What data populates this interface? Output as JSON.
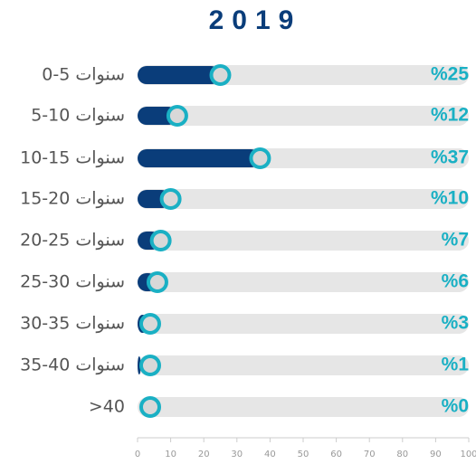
{
  "chart_data": {
    "type": "bar",
    "title": "2019",
    "categories": [
      "0-5 سنوات",
      "5-10 سنوات",
      "10-15 سنوات",
      "15-20 سنوات",
      "20-25 سنوات",
      "25-30 سنوات",
      "30-35 سنوات",
      "35-40 سنوات",
      ">40"
    ],
    "values": [
      25,
      12,
      37,
      10,
      7,
      6,
      3,
      1,
      0
    ],
    "value_labels": [
      "%25",
      "%12",
      "%37",
      "%10",
      "%7",
      "%6",
      "%3",
      "%1",
      "%0"
    ],
    "color": "#0a3d7a",
    "marker_color": "#1ab0c4",
    "track_color": "#e6e6e6",
    "xlim": [
      0,
      100
    ],
    "xticks": [
      0,
      10,
      20,
      30,
      40,
      50,
      60,
      70,
      80,
      90,
      100
    ]
  }
}
